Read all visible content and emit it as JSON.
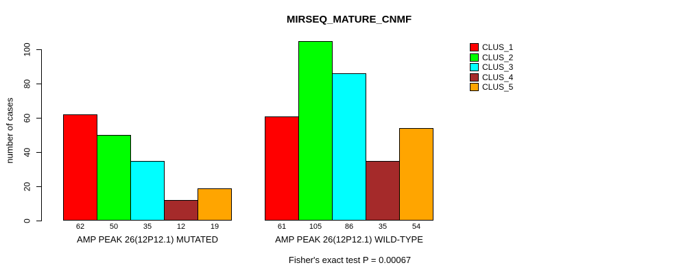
{
  "chart_data": {
    "type": "bar",
    "title": "MIRSEQ_MATURE_CNMF",
    "ylabel": "number of cases",
    "xlabel": "",
    "annotation": "Fisher's exact test P = 0.00067",
    "yticks": [
      0,
      20,
      40,
      60,
      80,
      100
    ],
    "ylim": [
      0,
      105
    ],
    "grid": false,
    "legend_position": "right",
    "bar_value_labels_shown": true,
    "categories": [
      "AMP PEAK 26(12P12.1) MUTATED",
      "AMP PEAK 26(12P12.1) WILD-TYPE"
    ],
    "series": [
      {
        "name": "CLUS_1",
        "color": "#FF0000",
        "values": [
          62,
          61
        ]
      },
      {
        "name": "CLUS_2",
        "color": "#00FF00",
        "values": [
          50,
          105
        ]
      },
      {
        "name": "CLUS_3",
        "color": "#00FFFF",
        "values": [
          35,
          86
        ]
      },
      {
        "name": "CLUS_4",
        "color": "#A52A2A",
        "values": [
          12,
          35
        ]
      },
      {
        "name": "CLUS_5",
        "color": "#FFA500",
        "values": [
          19,
          54
        ]
      }
    ]
  }
}
